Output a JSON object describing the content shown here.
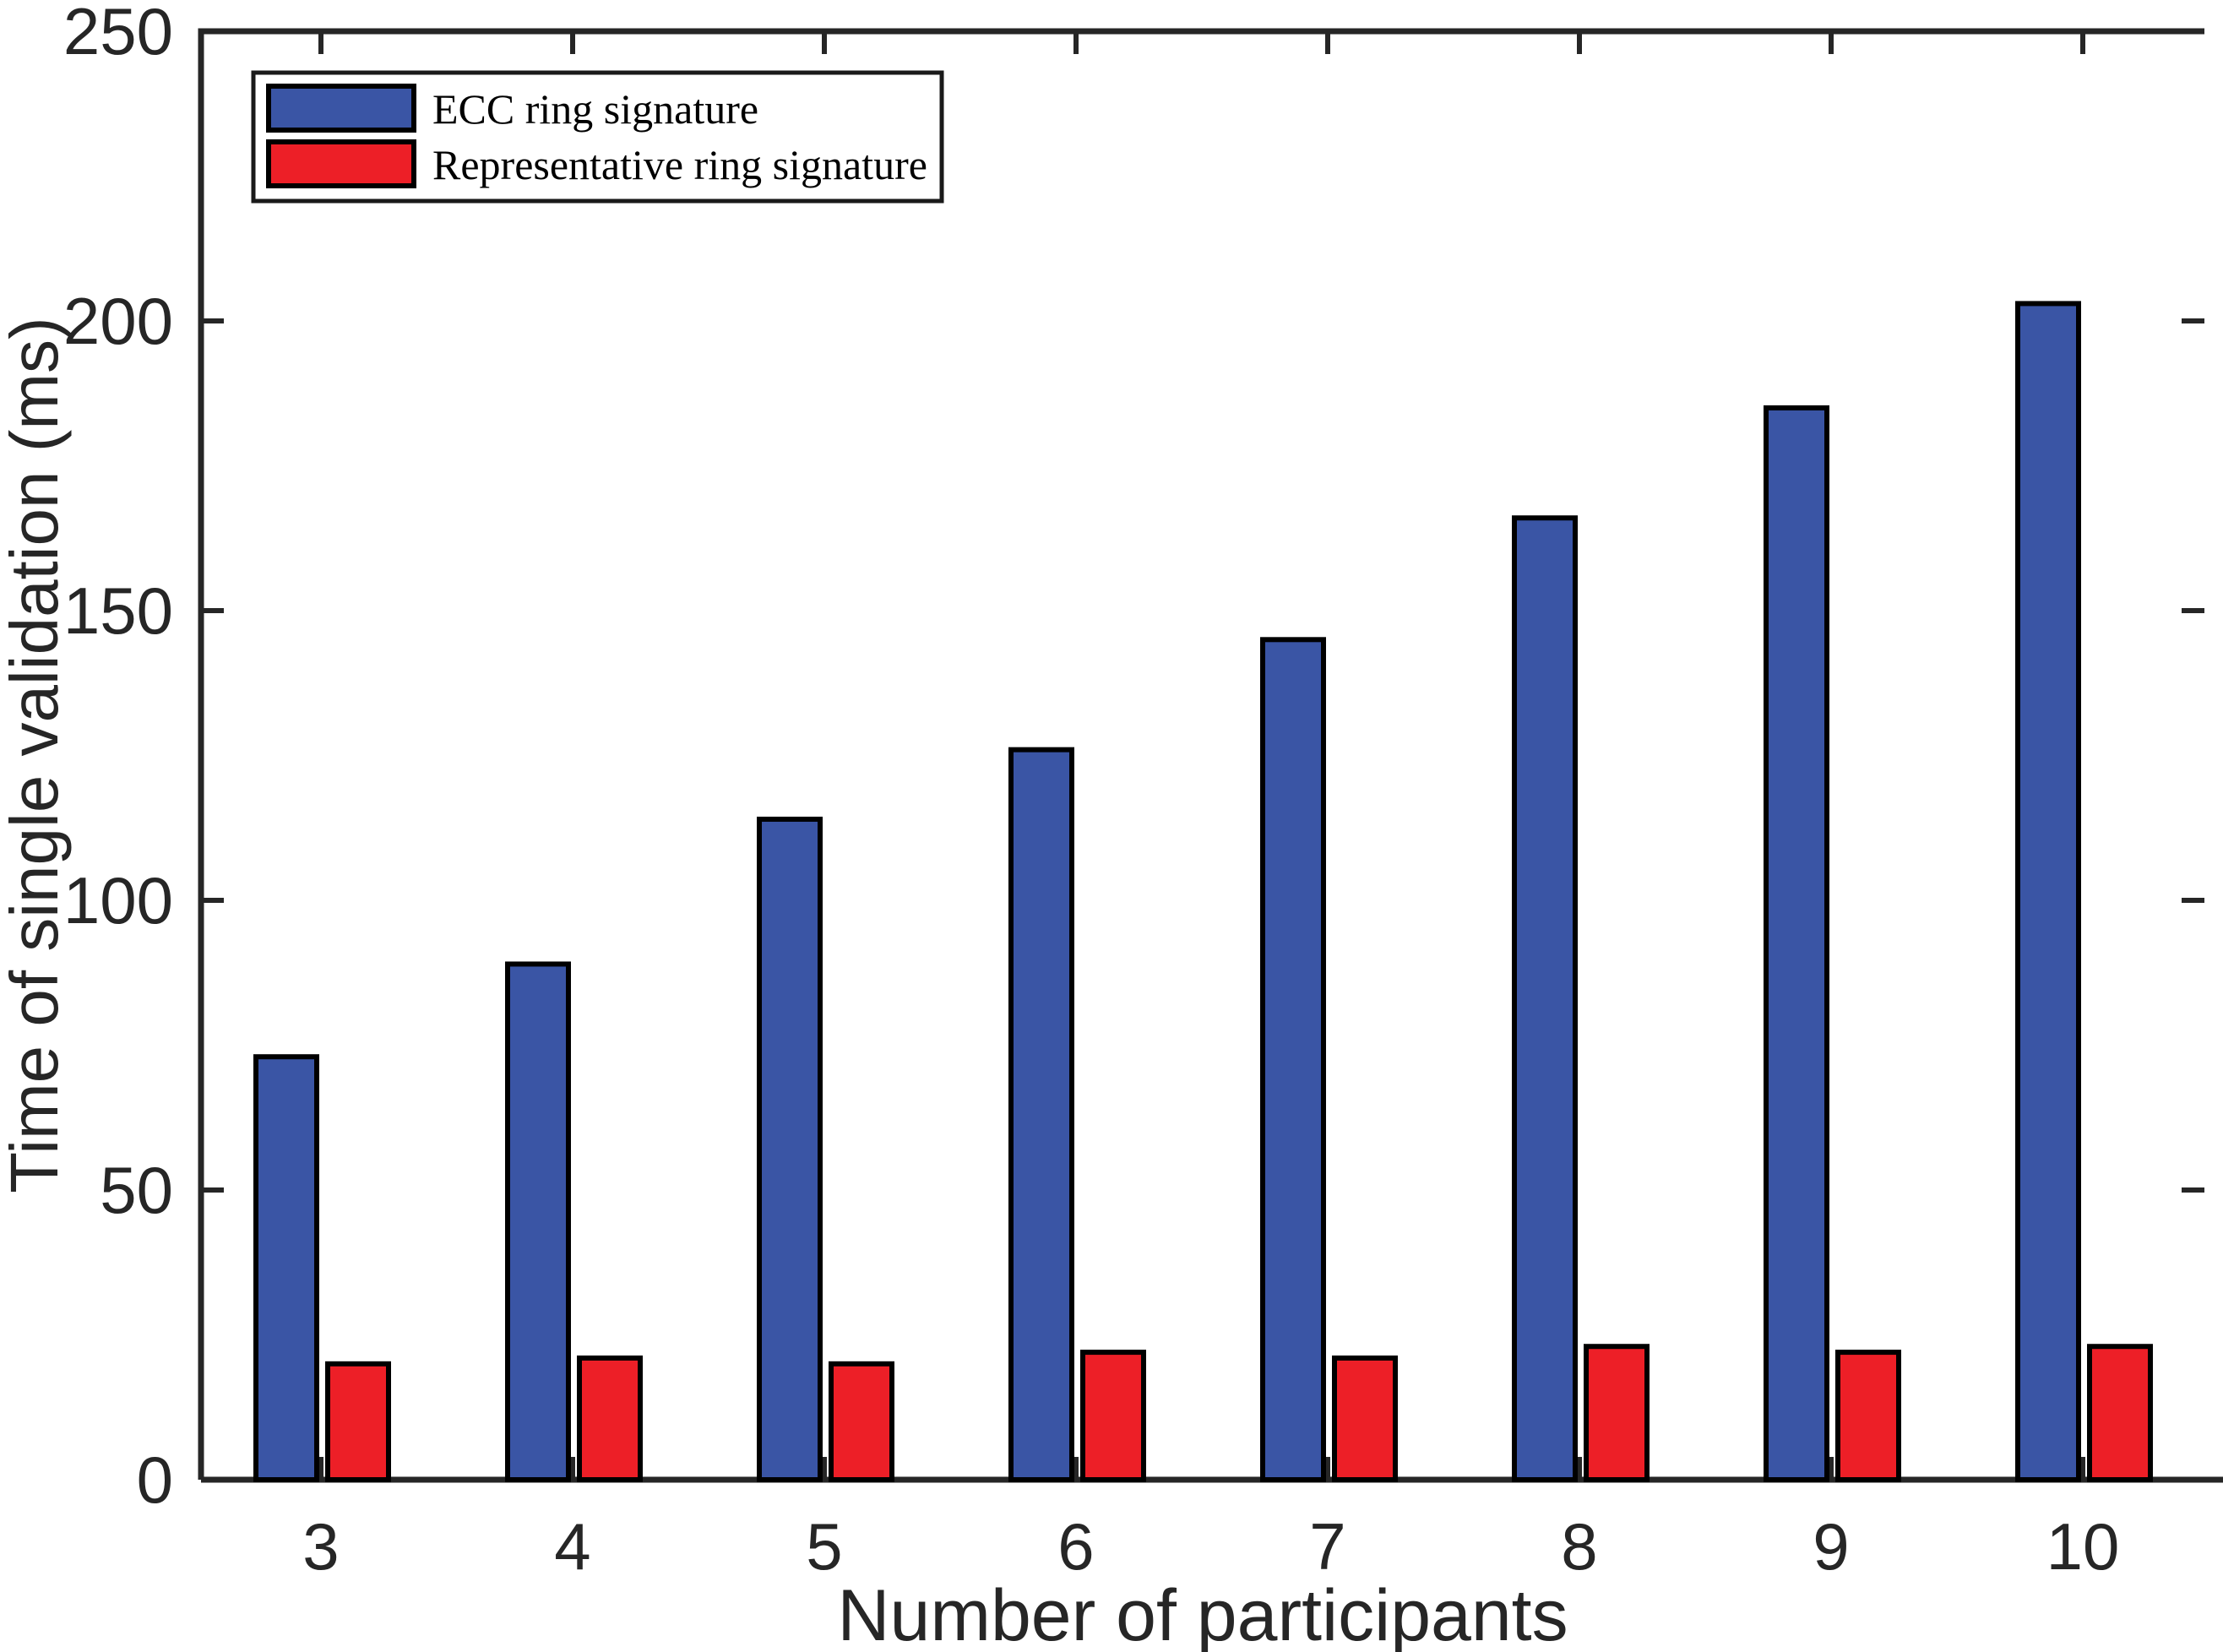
{
  "chart_data": {
    "type": "bar",
    "title": "",
    "categories": [
      "3",
      "4",
      "5",
      "6",
      "7",
      "8",
      "9",
      "10"
    ],
    "series": [
      {
        "name": "ECC ring signature",
        "color": "#3A55A5",
        "values": [
          73,
          89,
          114,
          126,
          145,
          166,
          185,
          203
        ]
      },
      {
        "name": "Representative ring signature",
        "color": "#ED1F27",
        "values": [
          20,
          21,
          20,
          22,
          21,
          23,
          22,
          23
        ]
      }
    ],
    "xlabel": "Number of participants",
    "ylabel": "Time of single validation (ms)",
    "ylim": [
      0,
      250
    ],
    "yticks": [
      0,
      50,
      100,
      150,
      200,
      250
    ],
    "legend_position": "top-left",
    "grid": false,
    "bar_outline_color": "#000000",
    "axis_color": "#262626",
    "background_color": "#ffffff"
  }
}
